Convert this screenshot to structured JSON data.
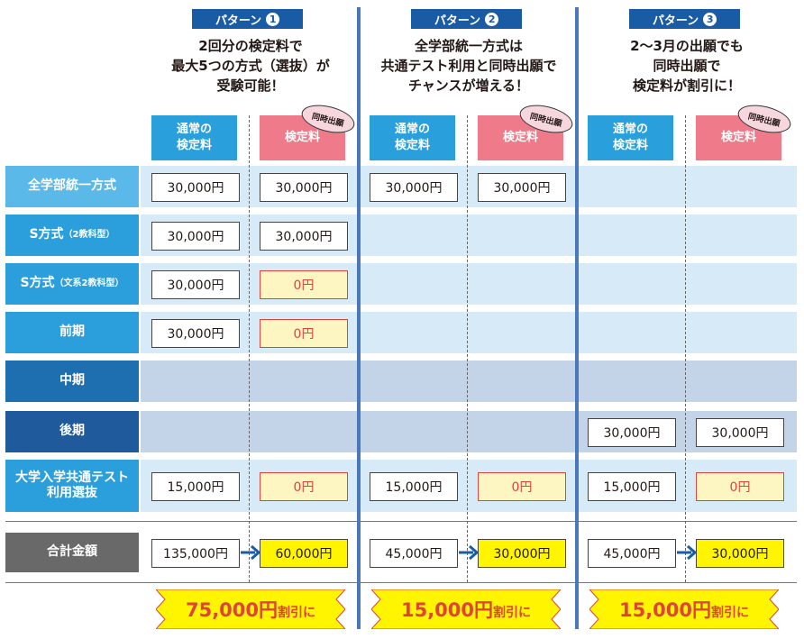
{
  "patterns": [
    {
      "tag": "パターン",
      "num": "1",
      "title": [
        "2回分の検定料で",
        "最大5つの方式（選抜）が",
        "受験可能！"
      ],
      "col_normal": [
        "通常の",
        "検定料"
      ],
      "col_sim": "検定料",
      "badge": "同時出願",
      "cells": {
        "r0": [
          "30,000円",
          "30,000円"
        ],
        "r1": [
          "30,000円",
          "30,000円"
        ],
        "r2": [
          "30,000円",
          "0円"
        ],
        "r3": [
          "30,000円",
          "0円"
        ],
        "r6": [
          "15,000円",
          "0円"
        ]
      },
      "total": [
        "135,000円",
        "60,000円"
      ],
      "discount": {
        "amount": "75,000円",
        "suffix": "割引に"
      }
    },
    {
      "tag": "パターン",
      "num": "2",
      "title": [
        "全学部統一方式は",
        "共通テスト利用と同時出願で",
        "チャンスが増える！"
      ],
      "col_normal": [
        "通常の",
        "検定料"
      ],
      "col_sim": "検定料",
      "badge": "同時出願",
      "cells": {
        "r0": [
          "30,000円",
          "30,000円"
        ],
        "r6": [
          "15,000円",
          "0円"
        ]
      },
      "total": [
        "45,000円",
        "30,000円"
      ],
      "discount": {
        "amount": "15,000円",
        "suffix": "割引に"
      }
    },
    {
      "tag": "パターン",
      "num": "3",
      "title": [
        "2～3月の出願でも",
        "同時出願で",
        "検定料が割引に！"
      ],
      "col_normal": [
        "通常の",
        "検定料"
      ],
      "col_sim": "検定料",
      "badge": "同時出願",
      "cells": {
        "r5": [
          "30,000円",
          "30,000円"
        ],
        "r6": [
          "15,000円",
          "0円"
        ]
      },
      "total": [
        "45,000円",
        "30,000円"
      ],
      "discount": {
        "amount": "15,000円",
        "suffix": "割引に"
      }
    }
  ],
  "rows": [
    {
      "label": "全学部統一方式",
      "small": ""
    },
    {
      "label": "S方式",
      "small": "（2教科型）"
    },
    {
      "label": "S方式",
      "small": "（文系2教科型）"
    },
    {
      "label": "前期",
      "small": ""
    },
    {
      "label": "中期",
      "small": ""
    },
    {
      "label": "後期",
      "small": ""
    },
    {
      "label": "大学入学共通テスト\n利用選抜",
      "small": ""
    }
  ],
  "total_label": "合計金額",
  "colors": {
    "tag": "#1a5ba6",
    "normal_head": "#29a0db",
    "sim_head": "#ef7a8a",
    "zero": "#e0423c",
    "total_fill": "#fff500",
    "discount_fill": "#fff500",
    "separator": "#4a78b8"
  }
}
